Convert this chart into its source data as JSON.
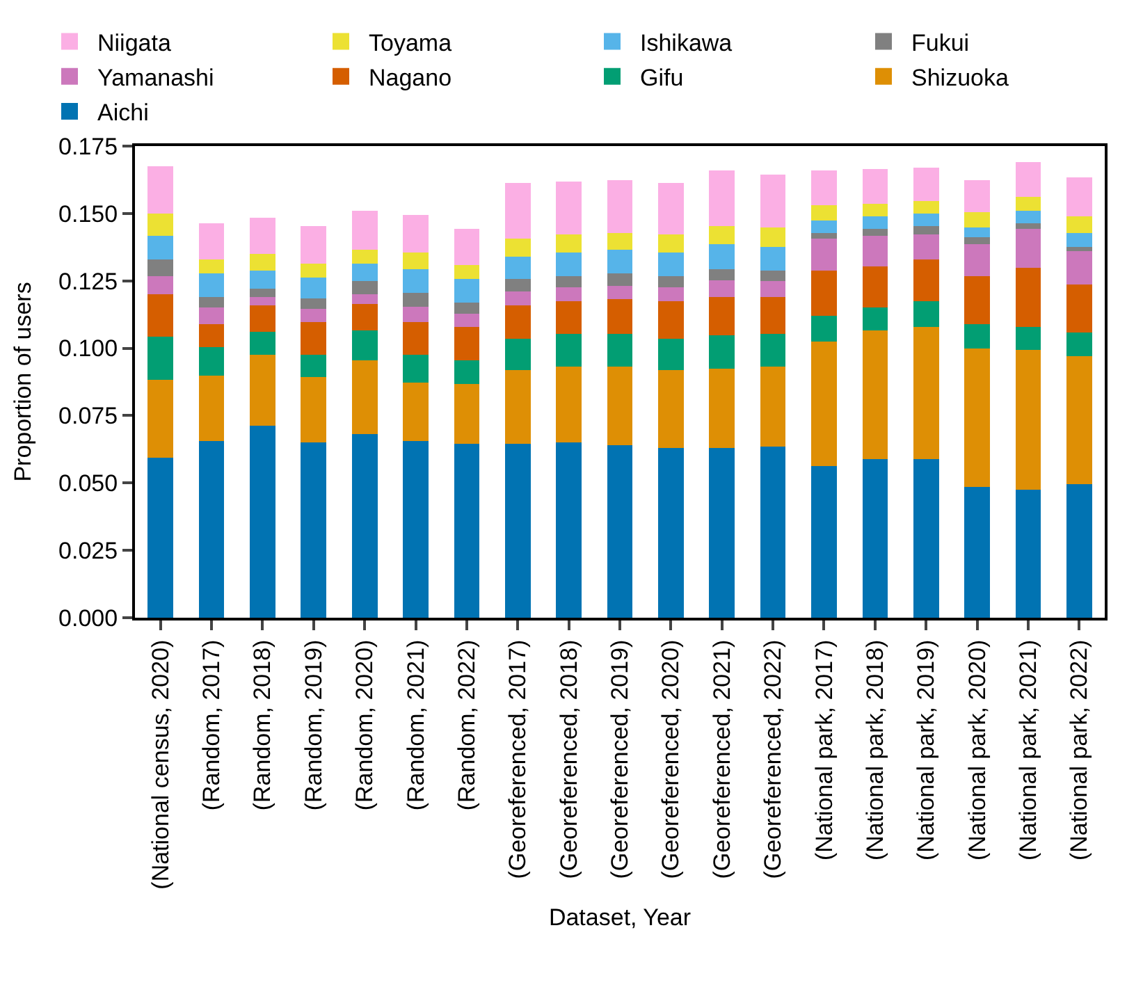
{
  "chart_data": {
    "type": "bar",
    "stacked": true,
    "xlabel": "Dataset, Year",
    "ylabel": "Proportion of users",
    "categories": [
      "(National census, 2020)",
      "(Random, 2017)",
      "(Random, 2018)",
      "(Random, 2019)",
      "(Random, 2020)",
      "(Random, 2021)",
      "(Random, 2022)",
      "(Georeferenced, 2017)",
      "(Georeferenced, 2018)",
      "(Georeferenced, 2019)",
      "(Georeferenced, 2020)",
      "(Georeferenced, 2021)",
      "(Georeferenced, 2022)",
      "(National park, 2017)",
      "(National park, 2018)",
      "(National park, 2019)",
      "(National park, 2020)",
      "(National park, 2021)",
      "(National park, 2022)"
    ],
    "ylim": [
      0,
      0.175
    ],
    "yticks": [
      {
        "value": 0,
        "label": "0.000"
      },
      {
        "value": 0.025,
        "label": "0.025"
      },
      {
        "value": 0.05,
        "label": "0.050"
      },
      {
        "value": 0.075,
        "label": "0.075"
      },
      {
        "value": 0.1,
        "label": "0.100"
      },
      {
        "value": 0.125,
        "label": "0.125"
      },
      {
        "value": 0.15,
        "label": "0.150"
      },
      {
        "value": 0.175,
        "label": "0.175"
      }
    ],
    "legend": "top",
    "series": [
      {
        "name": "Aichi",
        "color": "#0173b2",
        "values": [
          0.0594,
          0.0655,
          0.0712,
          0.065,
          0.0681,
          0.0655,
          0.0645,
          0.0645,
          0.065,
          0.064,
          0.063,
          0.063,
          0.0635,
          0.0563,
          0.0589,
          0.0589,
          0.0486,
          0.0475,
          0.0496
        ]
      },
      {
        "name": "Shizuoka",
        "color": "#de8f05",
        "values": [
          0.0288,
          0.0242,
          0.0263,
          0.0242,
          0.0273,
          0.0217,
          0.0222,
          0.0273,
          0.0283,
          0.0293,
          0.0288,
          0.0293,
          0.0298,
          0.0463,
          0.0478,
          0.0489,
          0.0514,
          0.052,
          0.0474
        ]
      },
      {
        "name": "Gifu",
        "color": "#029e73",
        "values": [
          0.0161,
          0.0107,
          0.0087,
          0.0083,
          0.0113,
          0.0103,
          0.0087,
          0.0118,
          0.0119,
          0.0119,
          0.0118,
          0.0124,
          0.0119,
          0.0093,
          0.0083,
          0.0097,
          0.0088,
          0.0083,
          0.0087
        ]
      },
      {
        "name": "Nagano",
        "color": "#d55e00",
        "values": [
          0.0158,
          0.0084,
          0.0098,
          0.0123,
          0.0098,
          0.0123,
          0.0124,
          0.0124,
          0.0123,
          0.0129,
          0.0139,
          0.0144,
          0.0139,
          0.017,
          0.0154,
          0.0155,
          0.018,
          0.0221,
          0.018
        ]
      },
      {
        "name": "Yamanashi",
        "color": "#cc78bc",
        "values": [
          0.0067,
          0.0062,
          0.0031,
          0.0047,
          0.0036,
          0.0057,
          0.0051,
          0.0051,
          0.0052,
          0.0051,
          0.0052,
          0.0062,
          0.0057,
          0.0118,
          0.0113,
          0.0093,
          0.0119,
          0.0144,
          0.0124
        ]
      },
      {
        "name": "Fukui",
        "color": "#808080",
        "values": [
          0.0062,
          0.0041,
          0.0031,
          0.0041,
          0.0047,
          0.0051,
          0.0041,
          0.0047,
          0.0041,
          0.0046,
          0.0041,
          0.0041,
          0.0041,
          0.0021,
          0.0026,
          0.003,
          0.0025,
          0.0021,
          0.0015
        ]
      },
      {
        "name": "Ishikawa",
        "color": "#56b4e9",
        "values": [
          0.0087,
          0.0087,
          0.0067,
          0.0077,
          0.0066,
          0.0088,
          0.0088,
          0.0082,
          0.0088,
          0.0088,
          0.0088,
          0.0093,
          0.0087,
          0.0046,
          0.0046,
          0.0047,
          0.0036,
          0.0046,
          0.0052
        ]
      },
      {
        "name": "Toyama",
        "color": "#ece133",
        "values": [
          0.0083,
          0.0052,
          0.0061,
          0.0051,
          0.0052,
          0.0062,
          0.0051,
          0.0067,
          0.0067,
          0.0062,
          0.0067,
          0.0066,
          0.0072,
          0.0057,
          0.0047,
          0.0046,
          0.0057,
          0.0052,
          0.0062
        ]
      },
      {
        "name": "Niigata",
        "color": "#fbafe4",
        "values": [
          0.0175,
          0.0134,
          0.0134,
          0.0139,
          0.0144,
          0.0139,
          0.0134,
          0.0206,
          0.0195,
          0.0195,
          0.019,
          0.0206,
          0.0196,
          0.0128,
          0.0129,
          0.0124,
          0.0118,
          0.0128,
          0.0144
        ]
      }
    ]
  }
}
